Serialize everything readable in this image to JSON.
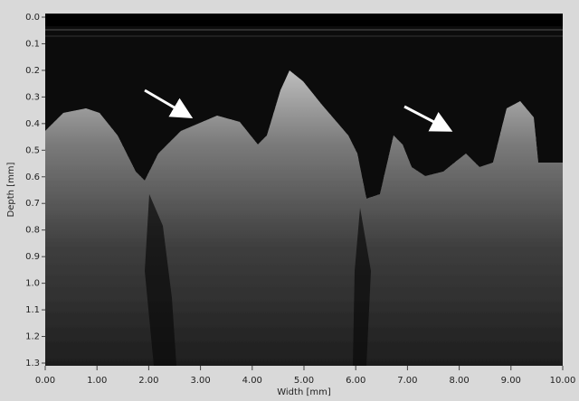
{
  "chart_data": {
    "type": "image",
    "x_label": "Width [mm]",
    "y_label": "Depth [mm]",
    "xlim": [
      0,
      10
    ],
    "ylim": [
      1.3,
      0
    ],
    "xticks": [
      {
        "value": 0,
        "label": "0.00"
      },
      {
        "value": 1,
        "label": "1.00"
      },
      {
        "value": 2,
        "label": "2.00"
      },
      {
        "value": 3,
        "label": "3.00"
      },
      {
        "value": 4,
        "label": "4.00"
      },
      {
        "value": 5,
        "label": "5.00"
      },
      {
        "value": 6,
        "label": "6.00"
      },
      {
        "value": 7,
        "label": "7.00"
      },
      {
        "value": 8,
        "label": "8.00"
      },
      {
        "value": 9,
        "label": "9.00"
      },
      {
        "value": 10,
        "label": "10.00"
      }
    ],
    "yticks": [
      {
        "value": 0,
        "label": "0.0"
      },
      0.1,
      0.2,
      0.3,
      0.4,
      0.5,
      0.6,
      0.7,
      0.8,
      0.9,
      {
        "value": 1,
        "label": "1.0"
      },
      1.1,
      1.2,
      1.3
    ]
  }
}
